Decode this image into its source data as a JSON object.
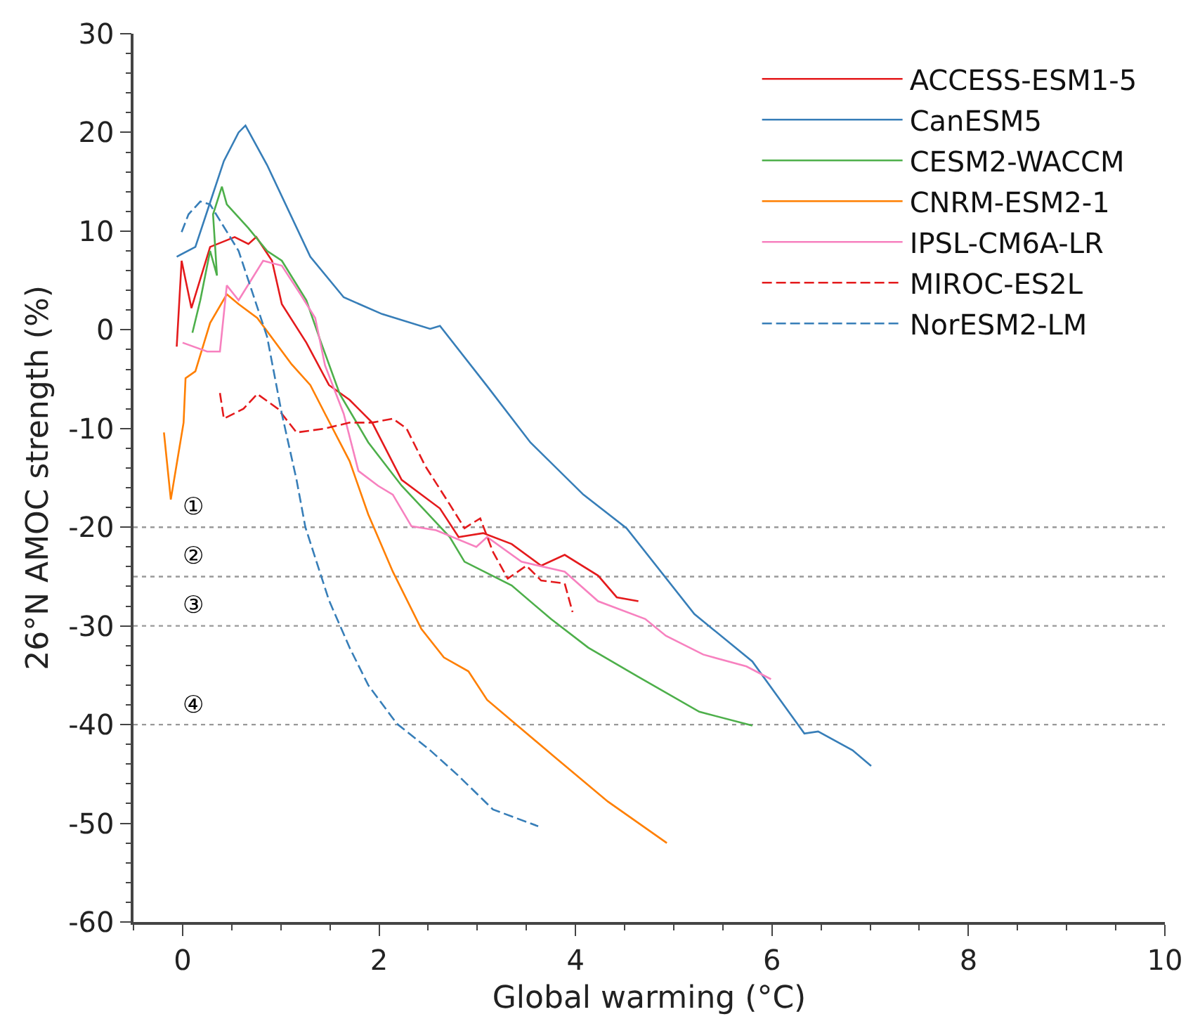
{
  "chart_data": {
    "type": "line",
    "xlabel": "Global warming (°C)",
    "ylabel": "26°N AMOC strength (%)",
    "xlim": [
      -0.5,
      10
    ],
    "xticks": [
      0,
      2,
      4,
      6,
      8,
      10
    ],
    "ylim": [
      -60,
      30
    ],
    "yticks": [
      -60,
      -50,
      -40,
      -30,
      -20,
      -10,
      0,
      10,
      20,
      30
    ],
    "grid": false,
    "legend": "top right",
    "marker": "none",
    "series": [
      {
        "name": "ACCESS-ESM1-5",
        "color": "#e41a1c",
        "line_style": "solid",
        "x": [
          -0.06,
          -0.01,
          0.09,
          0.28,
          0.53,
          0.67,
          0.75,
          0.91,
          1.01,
          1.26,
          1.49,
          1.7,
          1.93,
          2.23,
          2.62,
          2.81,
          3.06,
          3.35,
          3.65,
          3.89,
          4.23,
          4.42,
          4.64
        ],
        "values": [
          -1.7,
          7,
          2.2,
          8.4,
          9.4,
          8.7,
          9.4,
          7,
          2.6,
          -1.3,
          -5.6,
          -7.1,
          -9.4,
          -15.2,
          -18.1,
          -21,
          -20.6,
          -21.7,
          -23.9,
          -22.8,
          -24.9,
          -27.1,
          -27.5
        ]
      },
      {
        "name": "CanESM5",
        "color": "#377eb8",
        "line_style": "solid",
        "x": [
          -0.06,
          0.13,
          0.31,
          0.42,
          0.57,
          0.64,
          0.86,
          1.3,
          1.64,
          2.03,
          2.52,
          2.62,
          3.1,
          3.54,
          4.08,
          4.52,
          5.21,
          5.8,
          6.33,
          6.47,
          6.82,
          7.01
        ],
        "values": [
          7.4,
          8.4,
          13.8,
          17.1,
          20,
          20.7,
          16.7,
          7.4,
          3.3,
          1.6,
          0.1,
          0.4,
          -5.7,
          -11.4,
          -16.7,
          -20.1,
          -28.8,
          -33.6,
          -40.9,
          -40.7,
          -42.6,
          -44.2
        ]
      },
      {
        "name": "CESM2-WACCM",
        "color": "#4daf4a",
        "line_style": "solid",
        "x": [
          0.1,
          0.18,
          0.28,
          0.35,
          0.31,
          0.4,
          0.45,
          0.67,
          0.86,
          1.01,
          1.26,
          1.41,
          1.6,
          1.89,
          2.23,
          2.72,
          2.87,
          3.35,
          3.75,
          4.13,
          4.63,
          5.26,
          5.8
        ],
        "values": [
          -0.3,
          3,
          8,
          5.5,
          11.7,
          14.5,
          12.7,
          10.3,
          8,
          7,
          3,
          -1.3,
          -6.5,
          -11.4,
          -15.8,
          -21,
          -23.5,
          -25.9,
          -29.3,
          -32.2,
          -35.1,
          -38.7,
          -40.1
        ]
      },
      {
        "name": "CNRM-ESM2-1",
        "color": "#ff7f00",
        "line_style": "solid",
        "x": [
          -0.19,
          -0.12,
          0.01,
          0.03,
          0.13,
          0.28,
          0.45,
          0.57,
          0.76,
          1.11,
          1.3,
          1.45,
          1.7,
          1.89,
          2.14,
          2.43,
          2.66,
          2.91,
          3.1,
          3.79,
          4.33,
          4.63,
          4.93
        ],
        "values": [
          -10.4,
          -17.2,
          -9.4,
          -4.9,
          -4.2,
          0.7,
          3.6,
          2.6,
          1.2,
          -3.5,
          -5.6,
          -8.5,
          -13.3,
          -18.7,
          -24.5,
          -30.3,
          -33.2,
          -34.6,
          -37.5,
          -43.3,
          -47.8,
          -49.9,
          -52
        ]
      },
      {
        "name": "IPSL-CM6A-LR",
        "color": "#f781bf",
        "line_style": "solid",
        "x": [
          0,
          0.25,
          0.38,
          0.45,
          0.57,
          0.82,
          1.01,
          1.2,
          1.35,
          1.45,
          1.64,
          1.79,
          1.99,
          2.14,
          2.33,
          2.58,
          2.99,
          3.1,
          3.45,
          3.89,
          4.23,
          4.71,
          4.92,
          5.3,
          5.74,
          5.99
        ],
        "values": [
          -1.3,
          -2.2,
          -2.2,
          4.5,
          3,
          7,
          6.5,
          3.6,
          1.2,
          -3.6,
          -8.5,
          -14.3,
          -15.8,
          -16.7,
          -19.9,
          -20.3,
          -22,
          -21,
          -23.5,
          -24.5,
          -27.5,
          -29.3,
          -31,
          -32.9,
          -34.1,
          -35.4
        ]
      },
      {
        "name": "MIROC-ES2L",
        "color": "#e41a1c",
        "line_style": "dashed",
        "x": [
          0.38,
          0.42,
          0.62,
          0.76,
          0.97,
          1.16,
          1.45,
          1.7,
          1.93,
          2.14,
          2.28,
          2.47,
          2.72,
          2.87,
          3.03,
          3.16,
          3.31,
          3.5,
          3.65,
          3.89,
          3.97
        ],
        "values": [
          -6.4,
          -9,
          -8,
          -6.5,
          -8,
          -10.4,
          -10,
          -9.4,
          -9.4,
          -9,
          -10,
          -13.8,
          -17.7,
          -20.1,
          -19.1,
          -22.5,
          -25.2,
          -23.9,
          -25.4,
          -25.7,
          -28.6
        ]
      },
      {
        "name": "NorESM2-LM",
        "color": "#377eb8",
        "line_style": "dashed",
        "x": [
          -0.01,
          0.06,
          0.18,
          0.28,
          0.57,
          0.67,
          0.86,
          1.01,
          1.16,
          1.25,
          1.49,
          1.7,
          1.89,
          2.18,
          2.52,
          2.81,
          3.16,
          3.62
        ],
        "values": [
          9.9,
          11.7,
          13,
          12.7,
          8,
          5,
          -0.7,
          -8.5,
          -15.2,
          -20,
          -27.4,
          -32.2,
          -36,
          -39.9,
          -42.6,
          -45.2,
          -48.6,
          -50.3
        ]
      }
    ],
    "ref_lines": [
      {
        "axis": "y",
        "value": -20,
        "color": "#999999",
        "line_style": "dotted",
        "label": "①"
      },
      {
        "axis": "y",
        "value": -25,
        "color": "#999999",
        "line_style": "dotted",
        "label": "②"
      },
      {
        "axis": "y",
        "value": -30,
        "color": "#999999",
        "line_style": "dotted",
        "label": "③"
      },
      {
        "axis": "y",
        "value": -40,
        "color": "#999999",
        "line_style": "dotted",
        "label": "④"
      }
    ]
  }
}
